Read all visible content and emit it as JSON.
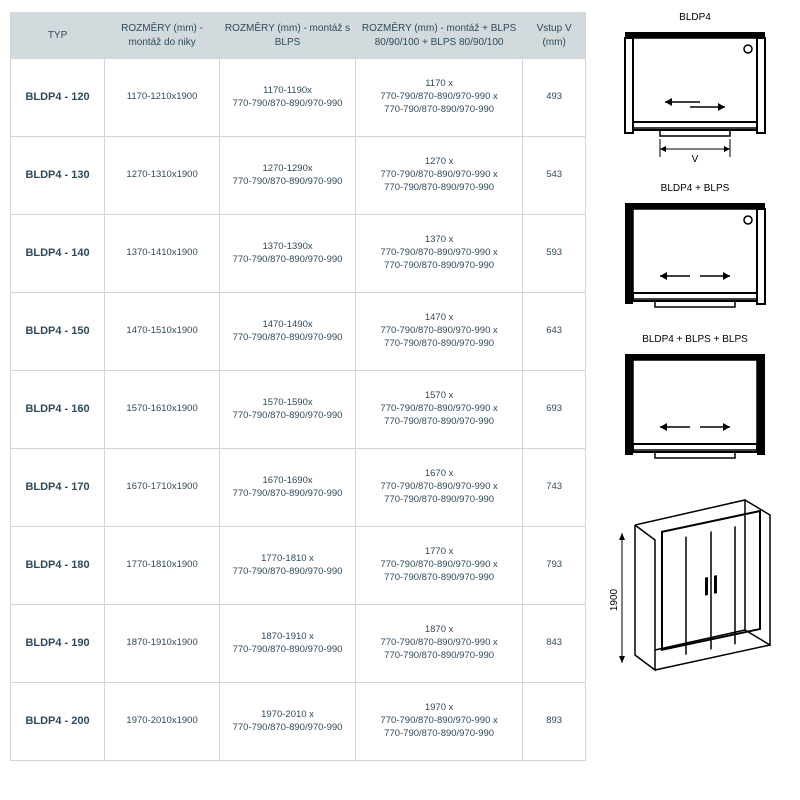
{
  "table": {
    "columns": [
      "TYP",
      "ROZMĚRY (mm) - montáž do niky",
      "ROZMĚRY (mm) - montáž s BLPS",
      "ROZMĚRY (mm) - montáž + BLPS 80/90/100 + BLPS 80/90/100",
      "Vstup V (mm)"
    ],
    "rows": [
      {
        "typ": "BLDP4 - 120",
        "niky": "1170-1210x1900",
        "blps_l1": "1170-1190x",
        "blps_l2": "770-790/870-890/970-990",
        "blps2_l1": "1170 x",
        "blps2_l2": "770-790/870-890/970-990 x",
        "blps2_l3": "770-790/870-890/970-990",
        "vstup": "493"
      },
      {
        "typ": "BLDP4 - 130",
        "niky": "1270-1310x1900",
        "blps_l1": "1270-1290x",
        "blps_l2": "770-790/870-890/970-990",
        "blps2_l1": "1270 x",
        "blps2_l2": "770-790/870-890/970-990 x",
        "blps2_l3": "770-790/870-890/970-990",
        "vstup": "543"
      },
      {
        "typ": "BLDP4 - 140",
        "niky": "1370-1410x1900",
        "blps_l1": "1370-1390x",
        "blps_l2": "770-790/870-890/970-990",
        "blps2_l1": "1370 x",
        "blps2_l2": "770-790/870-890/970-990 x",
        "blps2_l3": "770-790/870-890/970-990",
        "vstup": "593"
      },
      {
        "typ": "BLDP4 - 150",
        "niky": "1470-1510x1900",
        "blps_l1": "1470-1490x",
        "blps_l2": "770-790/870-890/970-990",
        "blps2_l1": "1470 x",
        "blps2_l2": "770-790/870-890/970-990 x",
        "blps2_l3": "770-790/870-890/970-990",
        "vstup": "643"
      },
      {
        "typ": "BLDP4 - 160",
        "niky": "1570-1610x1900",
        "blps_l1": "1570-1590x",
        "blps_l2": "770-790/870-890/970-990",
        "blps2_l1": "1570 x",
        "blps2_l2": "770-790/870-890/970-990 x",
        "blps2_l3": "770-790/870-890/970-990",
        "vstup": "693"
      },
      {
        "typ": "BLDP4 - 170",
        "niky": "1670-1710x1900",
        "blps_l1": "1670-1690x",
        "blps_l2": "770-790/870-890/970-990",
        "blps2_l1": "1670 x",
        "blps2_l2": "770-790/870-890/970-990 x",
        "blps2_l3": "770-790/870-890/970-990",
        "vstup": "743"
      },
      {
        "typ": "BLDP4 - 180",
        "niky": "1770-1810x1900",
        "blps_l1": "1770-1810 x",
        "blps_l2": "770-790/870-890/970-990",
        "blps2_l1": "1770 x",
        "blps2_l2": "770-790/870-890/970-990 x",
        "blps2_l3": "770-790/870-890/970-990",
        "vstup": "793"
      },
      {
        "typ": "BLDP4 - 190",
        "niky": "1870-1910x1900",
        "blps_l1": "1870-1910 x",
        "blps_l2": "770-790/870-890/970-990",
        "blps2_l1": "1870 x",
        "blps2_l2": "770-790/870-890/970-990 x",
        "blps2_l3": "770-790/870-890/970-990",
        "vstup": "843"
      },
      {
        "typ": "BLDP4 - 200",
        "niky": "1970-2010x1900",
        "blps_l1": "1970-2010 x",
        "blps_l2": "770-790/870-890/970-990",
        "blps2_l1": "1970 x",
        "blps2_l2": "770-790/870-890/970-990 x",
        "blps2_l3": "770-790/870-890/970-990",
        "vstup": "893"
      }
    ]
  },
  "diagrams": {
    "d1_title": "BLDP4",
    "d2_title": "BLDP4 + BLPS",
    "d3_title": "BLDP4 + BLPS + BLPS",
    "v_label": "V",
    "height_label": "1900"
  },
  "style": {
    "header_bg": "#d2dade",
    "border": "#cfd6da",
    "text": "#2e4a5a",
    "diagram_stroke": "#000000",
    "font_family": "Arial, sans-serif",
    "th_fontsize": 10,
    "td_fontsize": 9.5,
    "typ_fontsize": 11
  }
}
